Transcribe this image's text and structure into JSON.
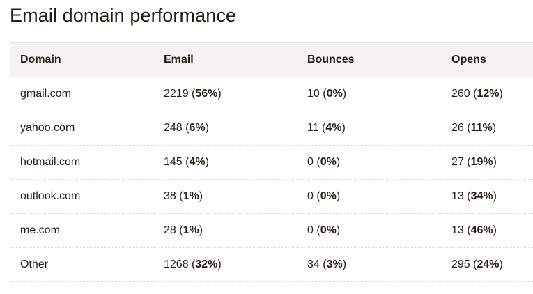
{
  "title": "Email domain performance",
  "columns": [
    "Domain",
    "Email",
    "Bounces",
    "Opens"
  ],
  "rows": [
    {
      "domain": "gmail.com",
      "email": "2219",
      "email_pct": "56%",
      "bounces": "10",
      "bounces_pct": "0%",
      "opens": "260",
      "opens_pct": "12%"
    },
    {
      "domain": "yahoo.com",
      "email": "248",
      "email_pct": "6%",
      "bounces": "11",
      "bounces_pct": "4%",
      "opens": "26",
      "opens_pct": "11%"
    },
    {
      "domain": "hotmail.com",
      "email": "145",
      "email_pct": "4%",
      "bounces": "0",
      "bounces_pct": "0%",
      "opens": "27",
      "opens_pct": "19%"
    },
    {
      "domain": "outlook.com",
      "email": "38",
      "email_pct": "1%",
      "bounces": "0",
      "bounces_pct": "0%",
      "opens": "13",
      "opens_pct": "34%"
    },
    {
      "domain": "me.com",
      "email": "28",
      "email_pct": "1%",
      "bounces": "0",
      "bounces_pct": "0%",
      "opens": "13",
      "opens_pct": "46%"
    },
    {
      "domain": "Other",
      "email": "1268",
      "email_pct": "32%",
      "bounces": "34",
      "bounces_pct": "3%",
      "opens": "295",
      "opens_pct": "24%"
    }
  ],
  "colors": {
    "text": "#241c15",
    "header_bg": "#f5f4f2",
    "divider": "#d9d6d1"
  }
}
